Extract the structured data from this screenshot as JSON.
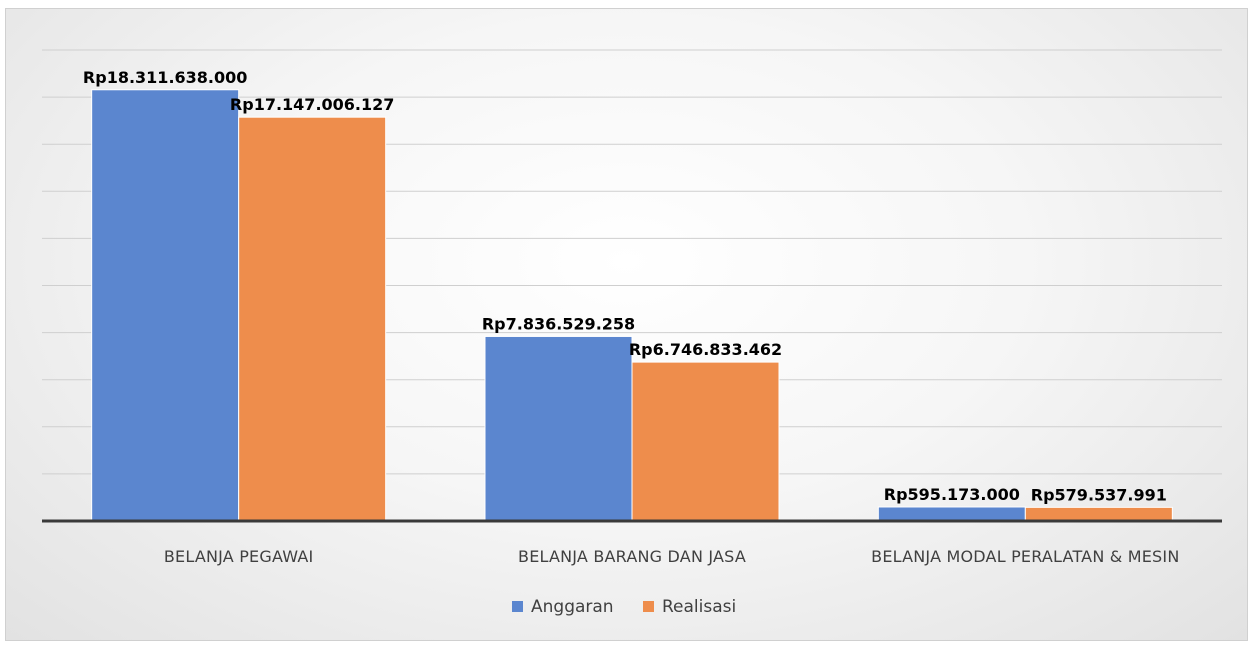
{
  "chart_data": {
    "type": "bar",
    "categories": [
      "BELANJA PEGAWAI",
      "BELANJA BARANG DAN JASA",
      "BELANJA MODAL PERALATAN & MESIN"
    ],
    "series": [
      {
        "name": "Anggaran",
        "color": "#5B86CF",
        "values": [
          18311638000,
          7836529258,
          595173000
        ],
        "labels": [
          "Rp18.311.638.000",
          "Rp7.836.529.258",
          "Rp595.173.000"
        ]
      },
      {
        "name": "Realisasi",
        "color": "#EE8D4C",
        "values": [
          17147006127,
          6746833462,
          579537991
        ],
        "labels": [
          "Rp17.147.006.127",
          "Rp6.746.833.462",
          "Rp579.537.991"
        ]
      }
    ],
    "ylim": [
      0,
      20000000000
    ],
    "grid": true,
    "legend_position": "bottom"
  }
}
